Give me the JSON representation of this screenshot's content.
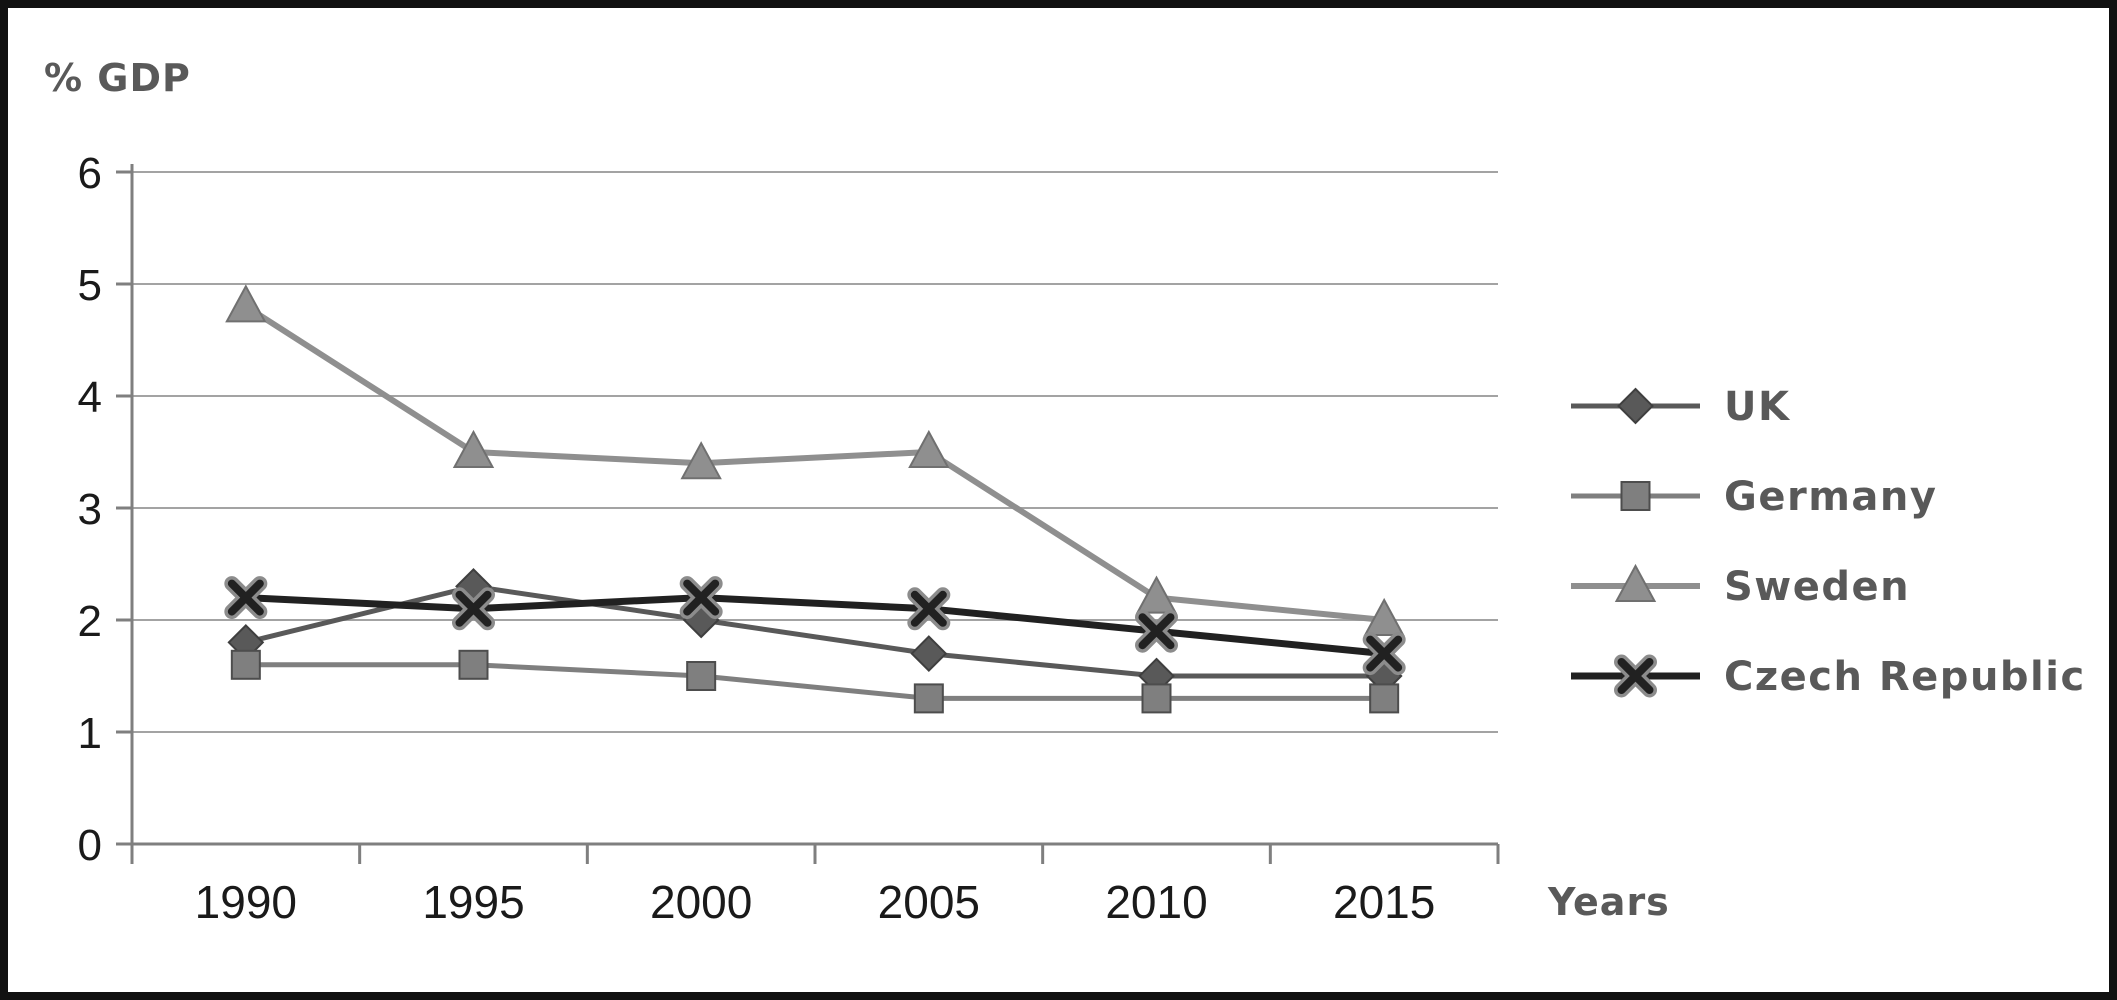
{
  "chart_data": {
    "type": "line",
    "title": "",
    "ylabel": "% GDP",
    "xlabel": "Years",
    "categories": [
      "1990",
      "1995",
      "2000",
      "2005",
      "2010",
      "2015"
    ],
    "ylim": [
      0,
      6
    ],
    "yticks": [
      0,
      1,
      2,
      3,
      4,
      5,
      6
    ],
    "grid": true,
    "legend_position": "right",
    "series": [
      {
        "name": "UK",
        "marker": "diamond",
        "color": "#595959",
        "line_width": 5,
        "values": [
          1.8,
          2.3,
          2.0,
          1.7,
          1.5,
          1.5
        ]
      },
      {
        "name": "Germany",
        "marker": "square",
        "color": "#7f7f7f",
        "line_width": 5,
        "values": [
          1.6,
          1.6,
          1.5,
          1.3,
          1.3,
          1.3
        ]
      },
      {
        "name": "Sweden",
        "marker": "triangle",
        "color": "#8f8f8f",
        "line_width": 6,
        "values": [
          4.8,
          3.5,
          3.4,
          3.5,
          2.2,
          2.0
        ]
      },
      {
        "name": "Czech Republic",
        "marker": "x",
        "color": "#212121",
        "line_width": 7,
        "values": [
          2.2,
          2.1,
          2.2,
          2.1,
          1.9,
          1.7
        ]
      }
    ],
    "style": {
      "grid_color": "#a3a3a3",
      "axis_color": "#7f7f7f",
      "tick_text_color": "#1a1a1a",
      "label_text_color": "#595959",
      "background": "#ffffff",
      "border_color": "#111111"
    }
  }
}
